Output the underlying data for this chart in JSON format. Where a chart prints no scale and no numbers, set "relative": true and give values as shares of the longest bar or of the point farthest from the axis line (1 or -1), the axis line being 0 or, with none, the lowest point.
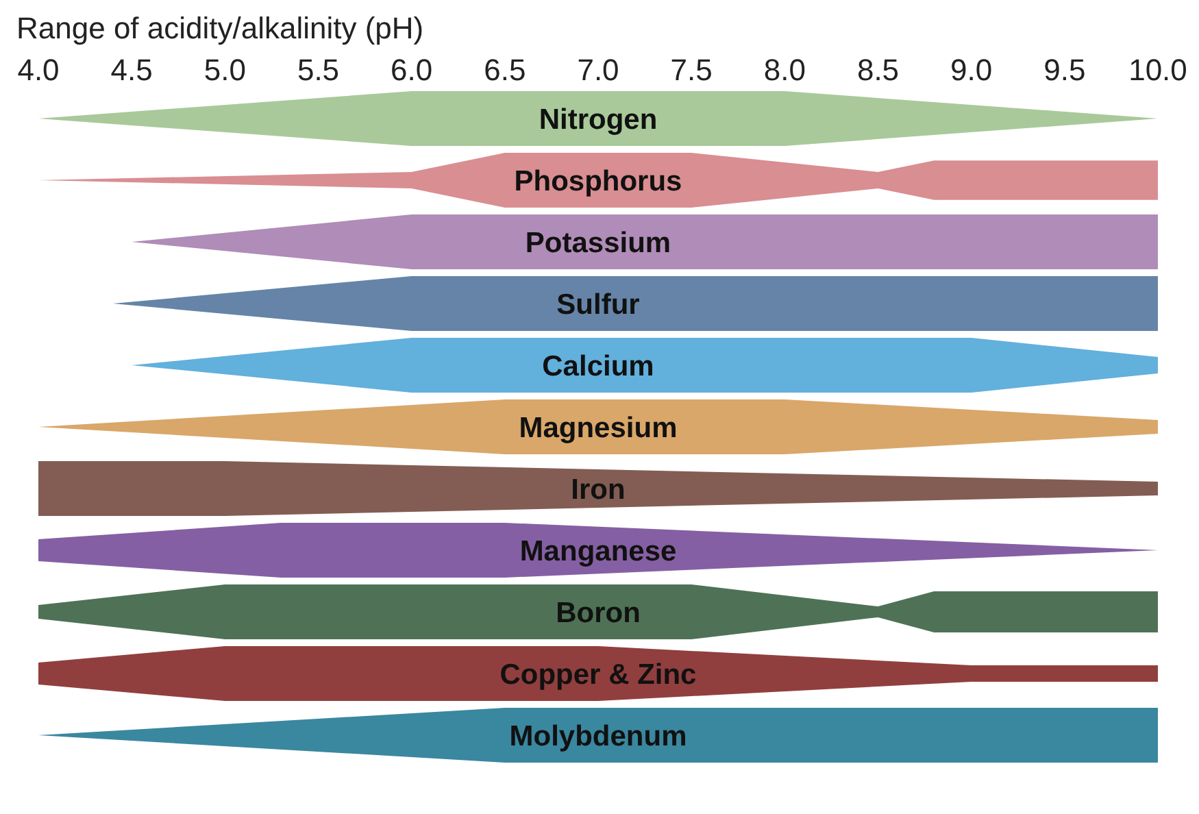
{
  "chart_data": [
    {
      "type": "area",
      "xlabel": "Range of acidity/alkalinity (pH)",
      "relative": true,
      "xlim": [
        4,
        10
      ],
      "xticks": [
        {
          "value": 4,
          "label": "4.0"
        },
        {
          "value": 4.5,
          "label": "4.5"
        },
        {
          "value": 5,
          "label": "5.0"
        },
        {
          "value": 5.5,
          "label": "5.5"
        },
        {
          "value": 6,
          "label": "6.0"
        },
        {
          "value": 6.5,
          "label": "6.5"
        },
        {
          "value": 7,
          "label": "7.0"
        },
        {
          "value": 7.5,
          "label": "7.5"
        },
        {
          "value": 8,
          "label": "8.0"
        },
        {
          "value": 8.5,
          "label": "8.5"
        },
        {
          "value": 9,
          "label": "9.0"
        },
        {
          "value": 9.5,
          "label": "9.5"
        },
        {
          "value": 10,
          "label": "10.0"
        }
      ],
      "tick_labels": "x",
      "series": [
        {
          "name": "Nitrogen",
          "color": "#a9c99a",
          "x": [
            4,
            6,
            8,
            10
          ],
          "values": [
            0,
            1,
            1,
            0
          ]
        }
      ]
    },
    {
      "type": "area",
      "relative": true,
      "xlim": [
        4,
        10
      ],
      "tick_labels": false,
      "series": [
        {
          "name": "Phosphorus",
          "color": "#d98e92",
          "x": [
            4,
            6,
            6.5,
            7.5,
            8.5,
            8.8,
            10
          ],
          "values": [
            0,
            0.3,
            1,
            1,
            0.3,
            0.72,
            0.72
          ]
        }
      ]
    },
    {
      "type": "area",
      "relative": true,
      "xlim": [
        4,
        10
      ],
      "tick_labels": false,
      "series": [
        {
          "name": "Potassium",
          "color": "#b08cb8",
          "x": [
            4,
            4.5,
            6,
            10
          ],
          "values": [
            0,
            0,
            1,
            1
          ]
        }
      ]
    },
    {
      "type": "area",
      "relative": true,
      "xlim": [
        4,
        10
      ],
      "tick_labels": false,
      "series": [
        {
          "name": "Sulfur",
          "color": "#6584a8",
          "x": [
            4,
            4.4,
            6,
            10
          ],
          "values": [
            0,
            0,
            1,
            1
          ]
        }
      ]
    },
    {
      "type": "area",
      "relative": true,
      "xlim": [
        4,
        10
      ],
      "tick_labels": false,
      "series": [
        {
          "name": "Calcium",
          "color": "#62b0dc",
          "x": [
            4,
            4.5,
            6,
            9,
            10
          ],
          "values": [
            0,
            0,
            1,
            1,
            0.3
          ]
        }
      ]
    },
    {
      "type": "area",
      "relative": true,
      "xlim": [
        4,
        10
      ],
      "tick_labels": false,
      "series": [
        {
          "name": "Magnesium",
          "color": "#d9a76a",
          "x": [
            4,
            6.5,
            8,
            10
          ],
          "values": [
            0,
            1,
            1,
            0.25
          ]
        }
      ]
    },
    {
      "type": "area",
      "relative": true,
      "xlim": [
        4,
        10
      ],
      "tick_labels": false,
      "series": [
        {
          "name": "Iron",
          "color": "#835d53",
          "x": [
            4,
            5,
            10
          ],
          "values": [
            1,
            1,
            0.25
          ]
        }
      ]
    },
    {
      "type": "area",
      "relative": true,
      "xlim": [
        4,
        10
      ],
      "tick_labels": false,
      "series": [
        {
          "name": "Manganese",
          "color": "#855fa3",
          "x": [
            4,
            5.3,
            6.5,
            10
          ],
          "values": [
            0.4,
            1,
            1,
            0
          ]
        }
      ]
    },
    {
      "type": "area",
      "relative": true,
      "xlim": [
        4,
        10
      ],
      "tick_labels": false,
      "series": [
        {
          "name": "Boron",
          "color": "#4f7256",
          "x": [
            4,
            5,
            7.5,
            8.5,
            8.8,
            10
          ],
          "values": [
            0.25,
            1,
            1,
            0.2,
            0.75,
            0.75
          ]
        }
      ]
    },
    {
      "type": "area",
      "relative": true,
      "xlim": [
        4,
        10
      ],
      "tick_labels": false,
      "series": [
        {
          "name": "Copper & Zinc",
          "color": "#913f3e",
          "x": [
            4,
            5,
            7,
            9,
            10
          ],
          "values": [
            0.4,
            1,
            1,
            0.3,
            0.3
          ]
        }
      ]
    },
    {
      "type": "area",
      "relative": true,
      "xlim": [
        4,
        10
      ],
      "tick_labels": false,
      "series": [
        {
          "name": "Molybdenum",
          "color": "#3a87a0",
          "x": [
            4,
            6.5,
            10
          ],
          "values": [
            0,
            1,
            1
          ]
        }
      ]
    }
  ]
}
